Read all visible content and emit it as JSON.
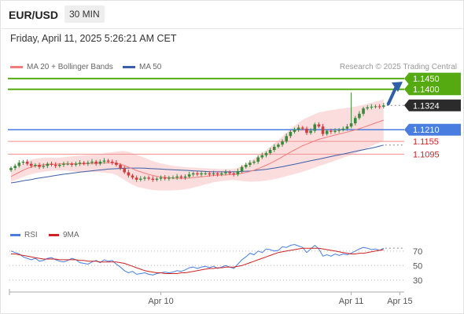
{
  "header": {
    "symbol": "EUR/USD",
    "timeframe": "30 MIN",
    "datetime": "Friday, April 11, 2025 5:26:21 AM CET"
  },
  "legend": {
    "ma20": "MA 20 + Bollinger Bands",
    "ma50": "MA 50",
    "credit": "Research © 2025 Trading Central"
  },
  "colors": {
    "up": "#3b8a3b",
    "down": "#d23c3c",
    "ma20": "#f47b7b",
    "ma50": "#3a5fa8",
    "band_fill": "#fbd9d9",
    "green_level": "#55aa11",
    "blue_level": "#4a7de0",
    "red_level": "#f28e8e",
    "red_text": "#cc2222",
    "arrow": "#2f5fa6",
    "rsi": "#4a7de0",
    "rsi_ma": "#cc2222"
  },
  "chart_data": [
    {
      "type": "candlestick",
      "ylim": [
        1.075,
        1.148
      ],
      "levels": [
        {
          "value": 1.145,
          "label": "1.1450",
          "style": "green"
        },
        {
          "value": 1.14,
          "label": "1.1400",
          "style": "green"
        },
        {
          "value": 1.1324,
          "label": "1.1324",
          "style": "current"
        },
        {
          "value": 1.121,
          "label": "1.1210",
          "style": "blue"
        },
        {
          "value": 1.1155,
          "label": "1.1155",
          "style": "red"
        },
        {
          "value": 1.1095,
          "label": "1.1095",
          "style": "red"
        }
      ],
      "close": [
        1.103,
        1.104,
        1.1055,
        1.106,
        1.105,
        1.104,
        1.1045,
        1.1035,
        1.104,
        1.105,
        1.1045,
        1.104,
        1.1045,
        1.105,
        1.105,
        1.1045,
        1.105,
        1.1055,
        1.105,
        1.1055,
        1.106,
        1.105,
        1.106,
        1.1065,
        1.106,
        1.1055,
        1.1045,
        1.103,
        1.101,
        1.0995,
        1.0985,
        1.0975,
        1.098,
        1.0985,
        1.098,
        1.0975,
        1.098,
        1.0985,
        1.098,
        1.0985,
        1.0985,
        1.099,
        1.0985,
        1.099,
        1.1,
        1.1005,
        1.1,
        1.1005,
        1.1005,
        1.1,
        1.1005,
        1.1,
        1.1005,
        1.101,
        1.1005,
        1.1,
        1.1015,
        1.1035,
        1.1045,
        1.1055,
        1.106,
        1.108,
        1.109,
        1.11,
        1.1115,
        1.113,
        1.114,
        1.1155,
        1.118,
        1.12,
        1.121,
        1.122,
        1.1215,
        1.1195,
        1.1205,
        1.1235,
        1.1225,
        1.119,
        1.1205,
        1.12,
        1.1205,
        1.121,
        1.1215,
        1.1225,
        1.124,
        1.1265,
        1.1285,
        1.131,
        1.1315,
        1.1318,
        1.132,
        1.1318,
        1.1324
      ],
      "ma20": [
        1.099,
        1.1,
        1.101,
        1.102,
        1.1028,
        1.1035,
        1.104,
        1.1043,
        1.1045,
        1.1047,
        1.1048,
        1.1048,
        1.1049,
        1.105,
        1.105,
        1.105,
        1.105,
        1.105,
        1.105,
        1.1051,
        1.1052,
        1.1052,
        1.1053,
        1.1054,
        1.1054,
        1.1054,
        1.1052,
        1.1048,
        1.1042,
        1.1034,
        1.1026,
        1.1018,
        1.1012,
        1.1006,
        1.1,
        1.0995,
        1.0991,
        1.0988,
        1.0986,
        1.0984,
        1.0983,
        1.0982,
        1.0982,
        1.0982,
        1.0983,
        1.0985,
        1.0987,
        1.0989,
        1.0991,
        1.0993,
        1.0995,
        1.0996,
        1.0997,
        1.0998,
        1.0999,
        1.1,
        1.1002,
        1.1005,
        1.1009,
        1.1014,
        1.102,
        1.1027,
        1.1035,
        1.1043,
        1.1052,
        1.1062,
        1.1072,
        1.1083,
        1.1094,
        1.1105,
        1.1115,
        1.1125,
        1.1135,
        1.1142,
        1.115,
        1.1158,
        1.1165,
        1.117,
        1.1175,
        1.118,
        1.1185,
        1.119,
        1.1194,
        1.1199,
        1.1204,
        1.1209,
        1.1215,
        1.1221,
        1.1228,
        1.1235,
        1.1242,
        1.1248,
        1.1255
      ],
      "ma50": [
        1.096,
        1.0963,
        1.0966,
        1.097,
        1.0973,
        1.0976,
        1.098,
        1.0983,
        1.0986,
        1.0989,
        1.0992,
        1.0995,
        1.0998,
        1.1001,
        1.1003,
        1.1006,
        1.1008,
        1.1011,
        1.1013,
        1.1015,
        1.1017,
        1.1019,
        1.1021,
        1.1023,
        1.1025,
        1.1026,
        1.1027,
        1.1028,
        1.1029,
        1.103,
        1.103,
        1.103,
        1.103,
        1.1029,
        1.1028,
        1.1027,
        1.1026,
        1.1025,
        1.1024,
        1.1023,
        1.1022,
        1.1021,
        1.102,
        1.1019,
        1.1018,
        1.1017,
        1.1016,
        1.1015,
        1.1014,
        1.1013,
        1.1012,
        1.1012,
        1.1012,
        1.1012,
        1.1012,
        1.1012,
        1.1013,
        1.1014,
        1.1015,
        1.1016,
        1.1018,
        1.102,
        1.1022,
        1.1024,
        1.1027,
        1.103,
        1.1033,
        1.1036,
        1.104,
        1.1044,
        1.1048,
        1.1052,
        1.1056,
        1.106,
        1.1064,
        1.1068,
        1.1072,
        1.1076,
        1.108,
        1.1084,
        1.1088,
        1.1092,
        1.1096,
        1.11,
        1.1104,
        1.1108,
        1.1112,
        1.1116,
        1.112,
        1.1124,
        1.1128,
        1.1133,
        1.1138
      ],
      "band_width": [
        0.0025,
        0.0028,
        0.003,
        0.0032,
        0.0033,
        0.0034,
        0.0034,
        0.0034,
        0.0033,
        0.0032,
        0.0031,
        0.003,
        0.003,
        0.0031,
        0.0033,
        0.0035,
        0.0037,
        0.0039,
        0.004,
        0.004,
        0.004,
        0.0041,
        0.0043,
        0.0045,
        0.0048,
        0.005,
        0.0055,
        0.0062,
        0.0068,
        0.0072,
        0.0074,
        0.0075,
        0.0074,
        0.0072,
        0.007,
        0.0068,
        0.0066,
        0.0064,
        0.0062,
        0.006,
        0.0058,
        0.0056,
        0.0054,
        0.0052,
        0.005,
        0.0047,
        0.0044,
        0.0041,
        0.0038,
        0.0035,
        0.0032,
        0.003,
        0.0028,
        0.0027,
        0.0026,
        0.0026,
        0.003,
        0.0036,
        0.0042,
        0.0048,
        0.0054,
        0.006,
        0.0066,
        0.0072,
        0.0078,
        0.0084,
        0.009,
        0.0096,
        0.0102,
        0.0108,
        0.0113,
        0.0118,
        0.0122,
        0.0124,
        0.0125,
        0.0126,
        0.0126,
        0.0125,
        0.0124,
        0.0122,
        0.012,
        0.0118,
        0.0116,
        0.0114,
        0.0112,
        0.011,
        0.0108,
        0.0106,
        0.0104,
        0.0102,
        0.01,
        0.0099,
        0.0098
      ],
      "spikes": {
        "84": 1.1385
      }
    },
    {
      "type": "line",
      "title_series": [
        "RSI",
        "9MA"
      ],
      "ylim": [
        20,
        85
      ],
      "yticks": [
        70,
        50,
        30
      ],
      "xticks": [
        {
          "index": 37,
          "label": "Apr 10"
        },
        {
          "index": 84,
          "label": "Apr 11"
        },
        {
          "index": 96,
          "label": "Apr 15"
        }
      ],
      "rsi": [
        70,
        68,
        66,
        62,
        60,
        58,
        60,
        56,
        57,
        60,
        61,
        58,
        56,
        55,
        57,
        60,
        58,
        54,
        53,
        52,
        55,
        57,
        54,
        58,
        56,
        57,
        52,
        48,
        43,
        40,
        42,
        38,
        39,
        40,
        38,
        37,
        39,
        40,
        41,
        40,
        41,
        43,
        42,
        44,
        47,
        48,
        46,
        48,
        49,
        47,
        49,
        46,
        48,
        50,
        48,
        46,
        52,
        58,
        62,
        67,
        65,
        70,
        68,
        73,
        72,
        70,
        71,
        76,
        75,
        78,
        79,
        77,
        75,
        68,
        73,
        78,
        73,
        63,
        65,
        63,
        66,
        64,
        66,
        65,
        67,
        70,
        73,
        75,
        74,
        72,
        73,
        71,
        74
      ],
      "ma9": [
        66,
        66,
        65,
        64,
        63,
        62,
        61,
        60,
        59,
        59,
        59,
        59,
        58,
        58,
        58,
        58,
        58,
        57,
        57,
        56,
        56,
        56,
        55,
        55,
        55,
        55,
        55,
        54,
        53,
        51,
        49,
        47,
        45,
        43,
        42,
        41,
        40,
        40,
        39,
        39,
        39,
        39,
        40,
        40,
        41,
        42,
        43,
        44,
        45,
        46,
        46,
        47,
        47,
        48,
        48,
        48,
        49,
        50,
        52,
        54,
        56,
        58,
        60,
        62,
        64,
        66,
        68,
        69,
        70,
        71,
        72,
        73,
        74,
        74,
        74,
        74,
        74,
        73,
        72,
        71,
        70,
        69,
        68,
        67,
        66,
        66,
        67,
        67,
        68,
        69,
        70,
        71,
        72
      ]
    }
  ]
}
